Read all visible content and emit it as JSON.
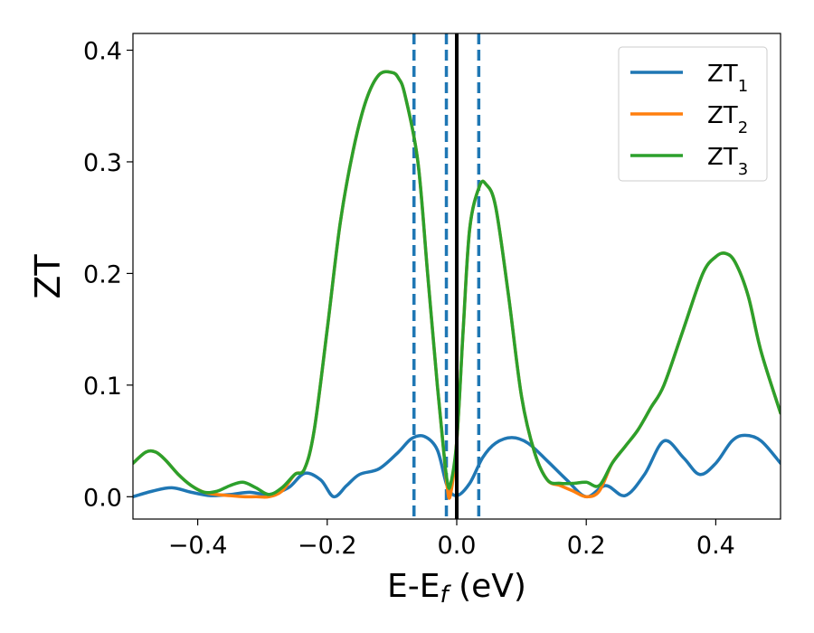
{
  "chart_data": {
    "type": "line",
    "xlabel": {
      "main": "E-E",
      "sub": "f",
      "unit": " (eV)"
    },
    "ylabel": "ZT",
    "xlim": [
      -0.5,
      0.5
    ],
    "ylim": [
      -0.02,
      0.415
    ],
    "xticks": [
      -0.4,
      -0.2,
      0.0,
      0.2,
      0.4
    ],
    "xtick_labels": [
      "−0.4",
      "−0.2",
      "0.0",
      "0.2",
      "0.4"
    ],
    "yticks": [
      0.0,
      0.1,
      0.2,
      0.3,
      0.4
    ],
    "ytick_labels": [
      "0.0",
      "0.1",
      "0.2",
      "0.3",
      "0.4"
    ],
    "grid": false,
    "legend_position": "top-right",
    "vlines": [
      {
        "x": -0.066,
        "style": "dashed",
        "color": "#1f77b4"
      },
      {
        "x": -0.016,
        "style": "dashed",
        "color": "#1f77b4"
      },
      {
        "x": 0.034,
        "style": "dashed",
        "color": "#1f77b4"
      },
      {
        "x": 0.0,
        "style": "solid",
        "color": "#000000"
      }
    ],
    "series": [
      {
        "name": "ZT",
        "sub": "1",
        "color": "#1f77b4",
        "x": [
          -0.5,
          -0.47,
          -0.44,
          -0.41,
          -0.38,
          -0.35,
          -0.32,
          -0.29,
          -0.26,
          -0.235,
          -0.21,
          -0.19,
          -0.17,
          -0.15,
          -0.12,
          -0.09,
          -0.07,
          -0.05,
          -0.03,
          -0.015,
          0.0,
          0.02,
          0.04,
          0.06,
          0.085,
          0.11,
          0.14,
          0.17,
          0.2,
          0.23,
          0.26,
          0.29,
          0.32,
          0.35,
          0.375,
          0.4,
          0.425,
          0.445,
          0.47,
          0.5
        ],
        "y": [
          0.0,
          0.005,
          0.008,
          0.004,
          0.001,
          0.002,
          0.004,
          0.002,
          0.008,
          0.021,
          0.015,
          0.0,
          0.01,
          0.02,
          0.025,
          0.04,
          0.052,
          0.054,
          0.042,
          0.01,
          0.001,
          0.012,
          0.035,
          0.048,
          0.053,
          0.048,
          0.032,
          0.015,
          0.0,
          0.01,
          0.001,
          0.02,
          0.05,
          0.035,
          0.02,
          0.03,
          0.05,
          0.055,
          0.05,
          0.03
        ]
      },
      {
        "name": "ZT",
        "sub": "2",
        "color": "#ff7f0e",
        "x": [
          -0.5,
          -0.48,
          -0.465,
          -0.45,
          -0.43,
          -0.41,
          -0.39,
          -0.37,
          -0.35,
          -0.33,
          -0.31,
          -0.29,
          -0.27,
          -0.25,
          -0.235,
          -0.22,
          -0.2,
          -0.18,
          -0.16,
          -0.14,
          -0.12,
          -0.1,
          -0.09,
          -0.08,
          -0.06,
          -0.045,
          -0.03,
          -0.02,
          -0.015,
          -0.01,
          0.0,
          0.01,
          0.02,
          0.035,
          0.045,
          0.06,
          0.08,
          0.1,
          0.12,
          0.14,
          0.16,
          0.18,
          0.2,
          0.22,
          0.24,
          0.26,
          0.28,
          0.3,
          0.32,
          0.35,
          0.38,
          0.4,
          0.415,
          0.43,
          0.45,
          0.47,
          0.5
        ],
        "y": [
          0.03,
          0.04,
          0.04,
          0.033,
          0.02,
          0.01,
          0.004,
          0.002,
          0.001,
          0.0,
          0.0,
          0.0,
          0.005,
          0.02,
          0.025,
          0.06,
          0.15,
          0.245,
          0.31,
          0.355,
          0.378,
          0.38,
          0.375,
          0.36,
          0.3,
          0.2,
          0.1,
          0.04,
          0.01,
          0.001,
          0.05,
          0.15,
          0.24,
          0.278,
          0.28,
          0.26,
          0.18,
          0.09,
          0.04,
          0.015,
          0.01,
          0.005,
          0.0,
          0.005,
          0.03,
          0.045,
          0.06,
          0.08,
          0.1,
          0.15,
          0.2,
          0.215,
          0.218,
          0.21,
          0.18,
          0.13,
          0.075
        ]
      },
      {
        "name": "ZT",
        "sub": "3",
        "color": "#2ca02c",
        "x": [
          -0.5,
          -0.48,
          -0.465,
          -0.45,
          -0.43,
          -0.41,
          -0.39,
          -0.37,
          -0.35,
          -0.33,
          -0.31,
          -0.29,
          -0.27,
          -0.25,
          -0.235,
          -0.22,
          -0.2,
          -0.18,
          -0.16,
          -0.14,
          -0.12,
          -0.1,
          -0.09,
          -0.08,
          -0.06,
          -0.045,
          -0.03,
          -0.02,
          -0.015,
          -0.01,
          0.0,
          0.01,
          0.02,
          0.035,
          0.045,
          0.06,
          0.08,
          0.1,
          0.12,
          0.14,
          0.16,
          0.18,
          0.2,
          0.22,
          0.24,
          0.26,
          0.28,
          0.3,
          0.32,
          0.35,
          0.38,
          0.4,
          0.415,
          0.43,
          0.45,
          0.47,
          0.5
        ],
        "y": [
          0.03,
          0.04,
          0.04,
          0.033,
          0.02,
          0.01,
          0.004,
          0.005,
          0.01,
          0.013,
          0.008,
          0.002,
          0.008,
          0.02,
          0.025,
          0.06,
          0.15,
          0.245,
          0.31,
          0.355,
          0.378,
          0.38,
          0.375,
          0.36,
          0.3,
          0.2,
          0.1,
          0.04,
          0.015,
          0.01,
          0.05,
          0.15,
          0.24,
          0.278,
          0.28,
          0.26,
          0.18,
          0.09,
          0.04,
          0.015,
          0.012,
          0.012,
          0.013,
          0.01,
          0.03,
          0.045,
          0.06,
          0.08,
          0.1,
          0.15,
          0.2,
          0.215,
          0.218,
          0.21,
          0.18,
          0.13,
          0.075
        ]
      }
    ]
  }
}
